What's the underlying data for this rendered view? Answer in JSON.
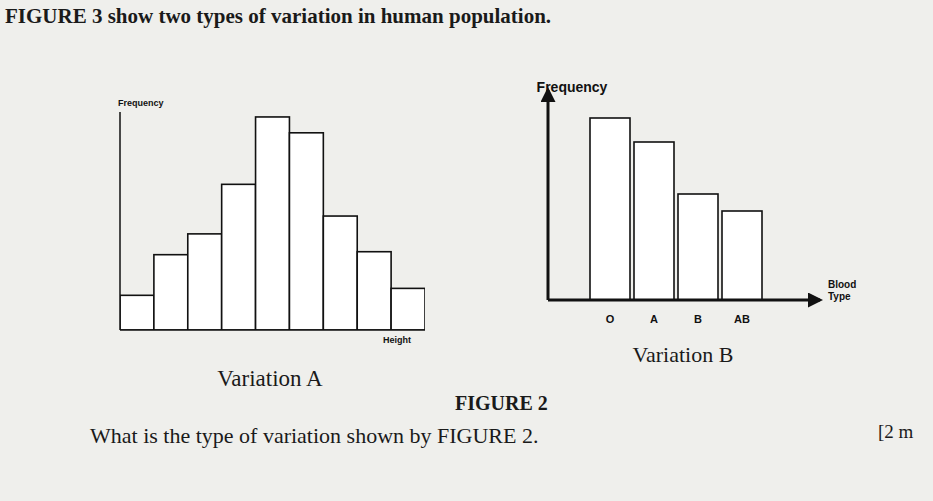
{
  "document": {
    "heading": "FIGURE 3 show two types of variation in human population.",
    "figure_label": "FIGURE 2",
    "question": "What is the type of variation shown by FIGURE 2.",
    "marks": "[2 m"
  },
  "chart_data": [
    {
      "type": "bar",
      "title": "Variation A",
      "xlabel": "Height",
      "ylabel": "Frequency",
      "categories": [
        null,
        null,
        null,
        null,
        null,
        null,
        null,
        null,
        null
      ],
      "values": [
        35,
        76,
        97,
        147,
        215,
        199,
        115,
        79,
        42
      ],
      "color": "#ffffff",
      "ylim": [
        0,
        220
      ],
      "tick_labels": false
    },
    {
      "type": "bar",
      "title": "Variation B",
      "xlabel": "Blood Type",
      "ylabel": "Frequency",
      "categories": [
        "O",
        "A",
        "B",
        "AB"
      ],
      "values": [
        182,
        158,
        106,
        89
      ],
      "color": "#ffffff",
      "ylim": [
        0,
        210
      ],
      "tick_labels": "x"
    }
  ]
}
